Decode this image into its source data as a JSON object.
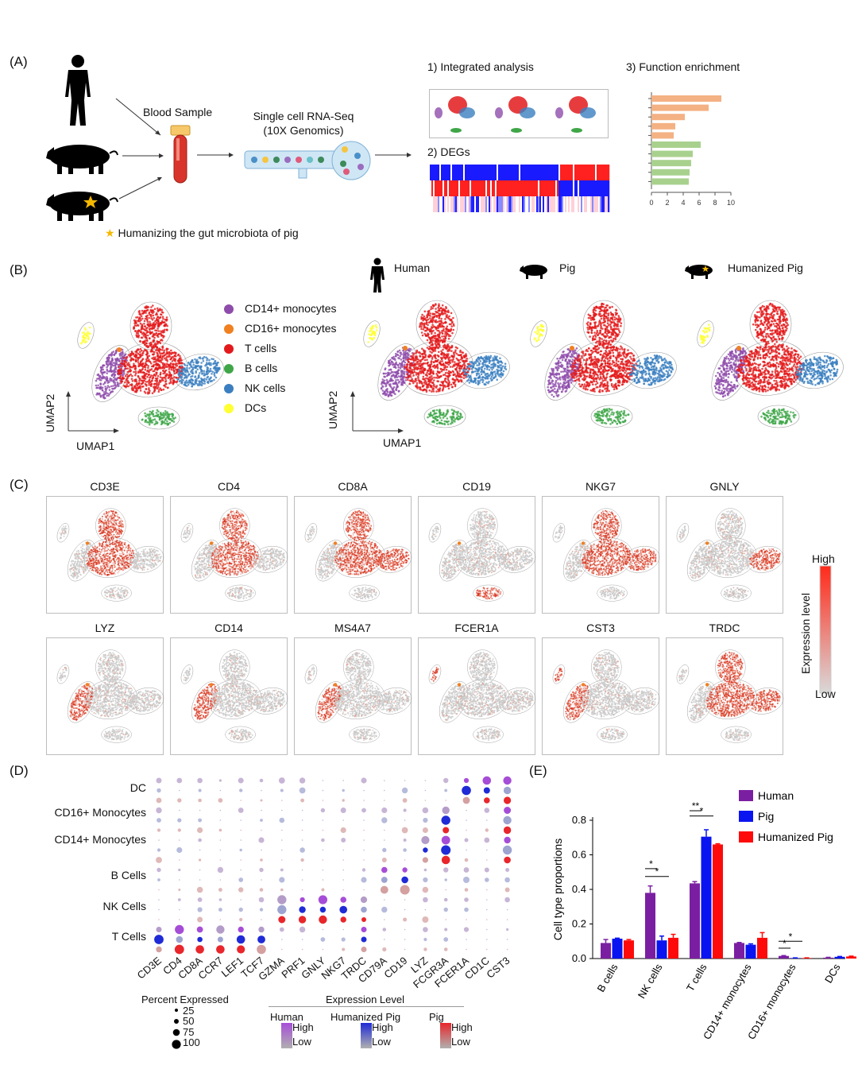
{
  "panel_a": {
    "label": "(A)",
    "blood_sample": "Blood Sample",
    "scrnaseq_line1": "Single cell RNA-Seq",
    "scrnaseq_line2": "(10X Genomics)",
    "step1": "1) Integrated analysis",
    "step2": "2) DEGs",
    "step3": "3) Function enrichment",
    "footnote": "Humanizing the gut microbiota of pig",
    "enrichment_ticks": [
      "0",
      "2",
      "4",
      "6",
      "8",
      "10"
    ],
    "enrichment_values": [
      8.8,
      7.2,
      4.2,
      3.0,
      2.8,
      6.2,
      5.2,
      5.0,
      4.8,
      4.7
    ],
    "colors": {
      "orange": "#f4b183",
      "green": "#a9d18e"
    }
  },
  "panel_b": {
    "label": "(B)",
    "groups": [
      "Human",
      "Pig",
      "Humanized Pig"
    ],
    "axis_x": "UMAP1",
    "axis_y": "UMAP2",
    "legend": [
      {
        "name": "CD14+ monocytes",
        "color": "#8e4cab"
      },
      {
        "name": "CD16+ monocytes",
        "color": "#f08020"
      },
      {
        "name": "T cells",
        "color": "#e31a1c"
      },
      {
        "name": "B cells",
        "color": "#3fa648"
      },
      {
        "name": "NK cells",
        "color": "#3b7fc0"
      },
      {
        "name": "DCs",
        "color": "#ffff33"
      }
    ]
  },
  "panel_c": {
    "label": "(C)",
    "genes_row1": [
      "CD3E",
      "CD4",
      "CD8A",
      "CD19",
      "NKG7",
      "GNLY"
    ],
    "genes_row2": [
      "LYZ",
      "CD14",
      "MS4A7",
      "FCER1A",
      "CST3",
      "TRDC"
    ],
    "scale_high": "High",
    "scale_low": "Low",
    "scale_title": "Expression level"
  },
  "panel_d": {
    "label": "(D)",
    "row_groups": [
      "DC",
      "CD16+ Monocytes",
      "CD14+ Monocytes",
      "B Cells",
      "NK Cells",
      "T Cells"
    ],
    "genes": [
      "CD3E",
      "CD4",
      "CD8A",
      "CCR7",
      "LEF1",
      "TCF7",
      "GZMA",
      "PRF1",
      "GNLY",
      "NKG7",
      "TRDC",
      "CD79A",
      "CD19",
      "LYZ",
      "FCGR3A",
      "FCER1A",
      "CD1C",
      "CST3"
    ],
    "percent_title": "Percent Expressed",
    "percent_values": [
      "25",
      "50",
      "75",
      "100"
    ],
    "expr_title": "Expression Level",
    "groups": [
      {
        "name": "Human",
        "high": "High",
        "low": "Low",
        "color": "#a64dd8"
      },
      {
        "name": "Humanized Pig",
        "high": "High",
        "low": "Low",
        "color": "#1f2bd6"
      },
      {
        "name": "Pig",
        "high": "High",
        "low": "Low",
        "color": "#e8262b"
      }
    ]
  },
  "panel_e": {
    "label": "(E)",
    "chart_data": {
      "type": "bar",
      "ylabel": "Cell type proportions",
      "ylim": [
        0,
        0.8
      ],
      "yticks": [
        "0.0",
        "0.2",
        "0.4",
        "0.6",
        "0.8"
      ],
      "categories": [
        "B cells",
        "NK cells",
        "T cells",
        "CD14+ monocytes",
        "CD16+ monocytes",
        "DCs"
      ],
      "series": [
        {
          "name": "Human",
          "color": "#7b1fa2",
          "values": [
            0.09,
            0.38,
            0.435,
            0.09,
            0.015,
            0.005
          ],
          "errors": [
            0.02,
            0.04,
            0.01,
            0.003,
            0.002,
            0.002
          ]
        },
        {
          "name": "Pig",
          "color": "#0a14f0",
          "values": [
            0.115,
            0.105,
            0.705,
            0.08,
            0.003,
            0.01
          ],
          "errors": [
            0.003,
            0.025,
            0.04,
            0.005,
            0.001,
            0.002
          ]
        },
        {
          "name": "Humanized Pig",
          "color": "#ff0a0a",
          "values": [
            0.105,
            0.12,
            0.66,
            0.12,
            0.003,
            0.012
          ],
          "errors": [
            0.005,
            0.02,
            0.004,
            0.03,
            0.001,
            0.002
          ]
        }
      ],
      "significance": [
        "*",
        "*",
        "**",
        "*",
        "*",
        "*"
      ]
    }
  }
}
